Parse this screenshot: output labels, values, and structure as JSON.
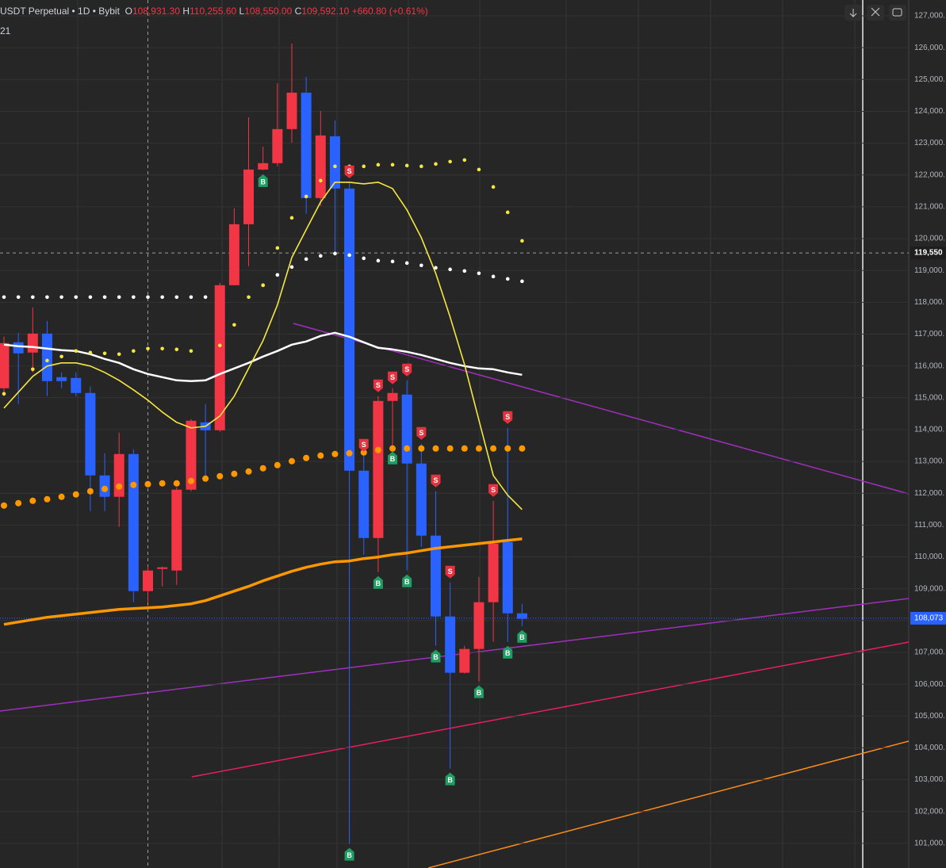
{
  "header": {
    "symbol": "USDT Perpetual • 1D • Bybit",
    "open_label": "O",
    "open": "108,931.30",
    "high_label": "H",
    "high": "110,255.60",
    "low_label": "L",
    "low": "108,550.00",
    "close_label": "C",
    "close": "109,592.10",
    "change": "+660.80 (+0.61%)",
    "sub": "21"
  },
  "chart_data": {
    "type": "candlestick",
    "ylim": [
      100225,
      127498
    ],
    "yticks": [
      {
        "value": 127000,
        "label": "127,000."
      },
      {
        "value": 126000,
        "label": "126,000."
      },
      {
        "value": 125000,
        "label": "125,000."
      },
      {
        "value": 124000,
        "label": "124,000."
      },
      {
        "value": 123000,
        "label": "123,000."
      },
      {
        "value": 122000,
        "label": "122,000."
      },
      {
        "value": 121000,
        "label": "121,000."
      },
      {
        "value": 120000,
        "label": "120,000."
      },
      {
        "value": 119000,
        "label": "119,000."
      },
      {
        "value": 118000,
        "label": "118,000."
      },
      {
        "value": 117000,
        "label": "117,000."
      },
      {
        "value": 116000,
        "label": "116,000."
      },
      {
        "value": 115000,
        "label": "115,000."
      },
      {
        "value": 114000,
        "label": "114,000."
      },
      {
        "value": 113000,
        "label": "113,000."
      },
      {
        "value": 112000,
        "label": "112,000."
      },
      {
        "value": 111000,
        "label": "111,000."
      },
      {
        "value": 110000,
        "label": "110,000."
      },
      {
        "value": 109000,
        "label": "109,000."
      },
      {
        "value": 108000,
        "label": "108,000."
      },
      {
        "value": 107000,
        "label": "107,000."
      },
      {
        "value": 106000,
        "label": "106,000."
      },
      {
        "value": 105000,
        "label": "105,000."
      },
      {
        "value": 104000,
        "label": "104,000."
      },
      {
        "value": 103000,
        "label": "103,000."
      },
      {
        "value": 102000,
        "label": "102,000."
      },
      {
        "value": 101000,
        "label": "101,000."
      }
    ],
    "grid": true,
    "up_color": "#f23645",
    "down_color": "#2962ff",
    "open": [
      115299,
      116743,
      116420,
      117017,
      115648,
      115623,
      115150,
      112560,
      111888,
      113232,
      108925,
      109622,
      109572,
      112112,
      114228,
      113979,
      118536,
      120453,
      122171,
      122371,
      123442,
      124587,
      121275,
      123217,
      121574,
      112709,
      110593,
      114901,
      115100,
      112934,
      110668,
      108128,
      106360,
      107107,
      108576,
      110468,
      108227
    ],
    "high": [
      116918,
      117042,
      117839,
      117416,
      115797,
      115797,
      115349,
      113257,
      113905,
      113382,
      109697,
      109697,
      112187,
      114328,
      114801,
      118611,
      120951,
      123815,
      122893,
      124886,
      126131,
      125085,
      124014,
      123715,
      121773,
      113183,
      115050,
      115299,
      115548,
      113556,
      112062,
      109199,
      107207,
      109373,
      111763,
      114054,
      108526
    ],
    "low": [
      115050,
      114801,
      115797,
      115050,
      115299,
      115050,
      111440,
      111440,
      110942,
      108576,
      108576,
      109074,
      109124,
      112062,
      112560,
      113929,
      118536,
      119134,
      122146,
      122271,
      123018,
      120777,
      121026,
      119532,
      100981,
      110070,
      109522,
      113432,
      109572,
      110319,
      107207,
      103347,
      106335,
      106086,
      107331,
      107331,
      107829
    ],
    "close": [
      116718,
      116395,
      117017,
      115523,
      115523,
      115150,
      112560,
      111888,
      113232,
      108925,
      109572,
      109672,
      112112,
      114278,
      113979,
      118536,
      120453,
      122171,
      122371,
      123442,
      124587,
      121275,
      123242,
      121574,
      112709,
      110593,
      114901,
      115150,
      112934,
      110668,
      108128,
      106360,
      107107,
      108576,
      110419,
      108227,
      108053
    ],
    "lines": [
      {
        "color": "#ffffff",
        "width": 2.5,
        "values": [
          116668,
          116619,
          116594,
          116544,
          116494,
          116469,
          116370,
          116220,
          116096,
          115897,
          115747,
          115648,
          115548,
          115523,
          115548,
          115747,
          115922,
          116096,
          116295,
          116469,
          116668,
          116768,
          116942,
          117042,
          116918,
          116743,
          116569,
          116519,
          116444,
          116345,
          116220,
          116096,
          115996,
          115922,
          115897,
          115797,
          115723
        ]
      },
      {
        "color": "#f5e642",
        "width": 1.6,
        "values": [
          114677,
          115175,
          115673,
          115996,
          116096,
          116096,
          115996,
          115797,
          115548,
          115249,
          114925,
          114552,
          114228,
          114054,
          114104,
          114428,
          115050,
          115922,
          116793,
          117914,
          119407,
          120279,
          121150,
          121773,
          121773,
          121723,
          121773,
          121574,
          120902,
          120030,
          118910,
          117540,
          116046,
          114303,
          112560,
          111938,
          111489
        ]
      },
      {
        "color": "#ff9800",
        "width": 3.5,
        "values": [
          107879,
          107954,
          108028,
          108103,
          108153,
          108203,
          108252,
          108302,
          108352,
          108377,
          108402,
          108427,
          108476,
          108526,
          108626,
          108775,
          108925,
          109074,
          109249,
          109398,
          109547,
          109672,
          109771,
          109846,
          109871,
          109945,
          109995,
          110070,
          110120,
          110195,
          110269,
          110319,
          110369,
          110419,
          110468,
          110518,
          110568
        ]
      }
    ],
    "dots": [
      {
        "color": "#ff9800",
        "size": 4,
        "values": [
          111614,
          111688,
          111763,
          111813,
          111888,
          111962,
          112062,
          112137,
          112211,
          112261,
          112286,
          112311,
          112311,
          112386,
          112460,
          112535,
          112610,
          112684,
          112784,
          112884,
          113008,
          113108,
          113183,
          113232,
          113257,
          113282,
          113357,
          113407,
          113407,
          113407,
          113407,
          113407,
          113407,
          113407,
          113407,
          113407,
          113407
        ]
      },
      {
        "color": "#ffffff",
        "size": 2.3,
        "values": [
          118163,
          118163,
          118163,
          118163,
          118163,
          118163,
          118163,
          118163,
          118163,
          118163,
          118163,
          118163,
          118163,
          118163,
          118163,
          null,
          null,
          null,
          118536,
          118860,
          119109,
          119358,
          119457,
          119532,
          119482,
          119383,
          119308,
          119283,
          119233,
          119159,
          119084,
          119034,
          118984,
          118910,
          118810,
          118735,
          118660
        ]
      },
      {
        "color": "#f5e642",
        "size": 2.3,
        "values": [
          115125,
          null,
          115897,
          116170,
          116295,
          116469,
          116420,
          116395,
          116370,
          116469,
          116544,
          116544,
          116519,
          116469,
          null,
          116644,
          117291,
          118163,
          118536,
          119706,
          120653,
          121325,
          121823,
          122271,
          122271,
          122271,
          122321,
          122321,
          122296,
          122271,
          122346,
          122420,
          122470,
          122171,
          121624,
          120827,
          119930
        ]
      }
    ],
    "signals": [
      {
        "label": "B",
        "index": 18
      },
      {
        "label": "B",
        "index": 24
      },
      {
        "label": "B",
        "index": 26
      },
      {
        "label": "B",
        "index": 27
      },
      {
        "label": "B",
        "index": 28
      },
      {
        "label": "B",
        "index": 30
      },
      {
        "label": "B",
        "index": 31
      },
      {
        "label": "B",
        "index": 33
      },
      {
        "label": "B",
        "index": 35
      },
      {
        "label": "B",
        "index": 36
      },
      {
        "label": "S",
        "index": 24
      },
      {
        "label": "S",
        "index": 25
      },
      {
        "label": "S",
        "index": 26
      },
      {
        "label": "S",
        "index": 27
      },
      {
        "label": "S",
        "index": 28
      },
      {
        "label": "S",
        "index": 29
      },
      {
        "label": "S",
        "index": 30
      },
      {
        "label": "S",
        "index": 31
      },
      {
        "label": "S",
        "index": 34
      },
      {
        "label": "S",
        "index": 35
      }
    ],
    "last_price": {
      "value": 108073,
      "label": "108,073"
    },
    "crosshair_price": {
      "value": 119550,
      "label": "119,550"
    },
    "crosshair_index": 10
  }
}
